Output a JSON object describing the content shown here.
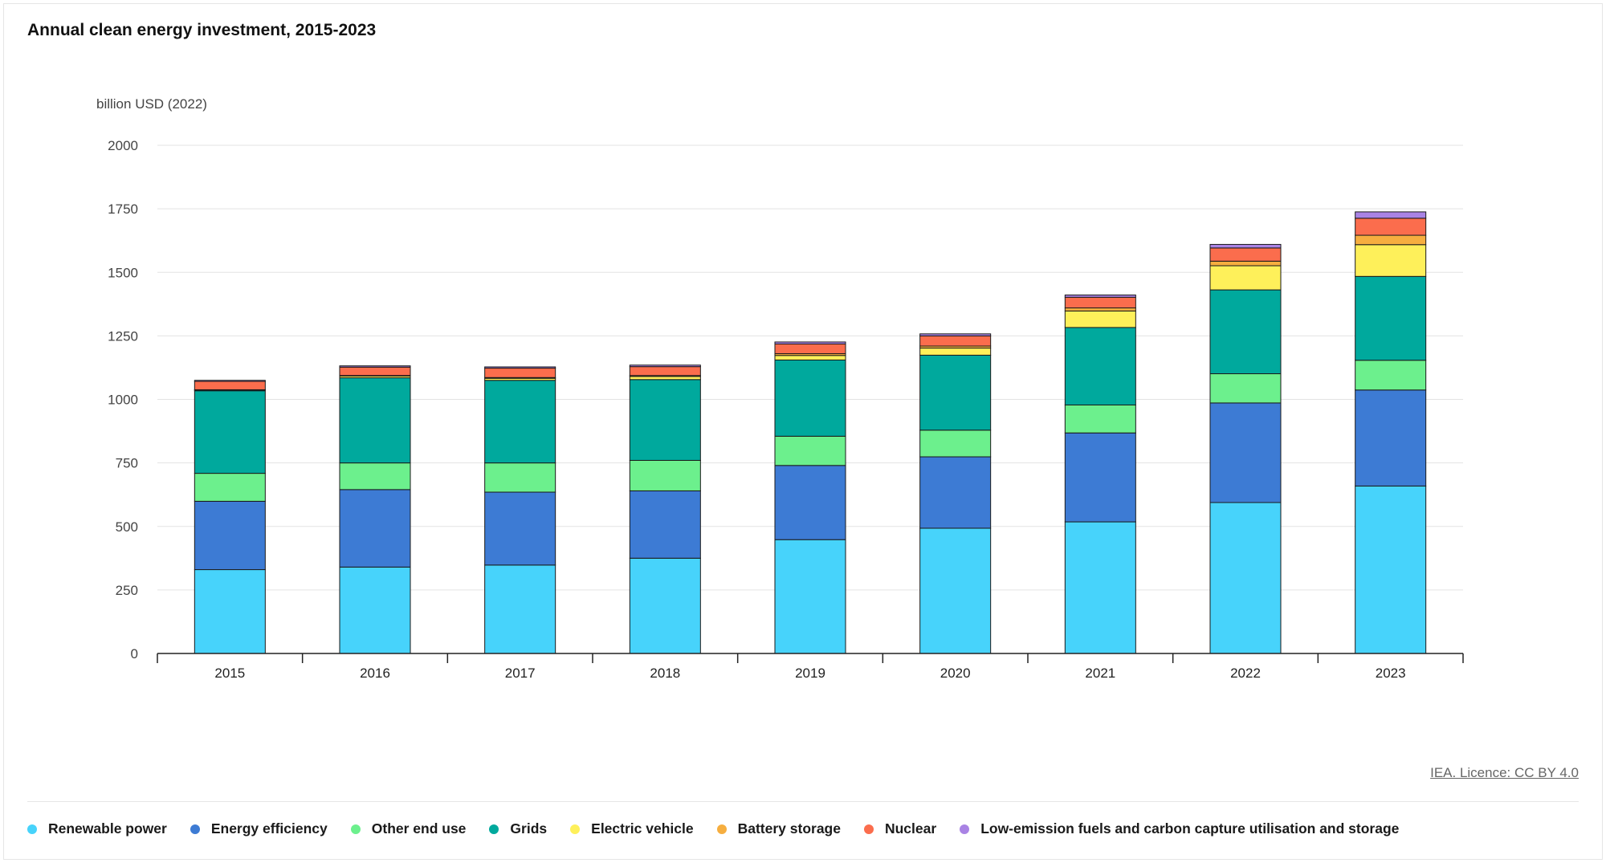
{
  "chart_data": {
    "type": "bar",
    "stacked": true,
    "title": "Annual clean energy investment, 2015-2023",
    "ylabel": "billion USD (2022)",
    "ylim": [
      0,
      2000
    ],
    "yticks": [
      0,
      250,
      500,
      750,
      1000,
      1250,
      1500,
      1750,
      2000
    ],
    "grid": true,
    "legend_position": "bottom",
    "categories": [
      "2015",
      "2016",
      "2017",
      "2018",
      "2019",
      "2020",
      "2021",
      "2022",
      "2023"
    ],
    "series": [
      {
        "name": "Renewable power",
        "color": "#47d3fb",
        "values": [
          330,
          340,
          348,
          375,
          448,
          493,
          518,
          594,
          659
        ]
      },
      {
        "name": "Energy efficiency",
        "color": "#3d7bd4",
        "values": [
          269,
          305,
          287,
          265,
          292,
          281,
          350,
          392,
          378
        ]
      },
      {
        "name": "Other end use",
        "color": "#6cf08d",
        "values": [
          110,
          105,
          115,
          120,
          115,
          105,
          110,
          115,
          117
        ]
      },
      {
        "name": "Grids",
        "color": "#00a99d",
        "values": [
          325,
          335,
          325,
          318,
          300,
          295,
          305,
          330,
          330
        ]
      },
      {
        "name": "Electric vehicle",
        "color": "#fef05a",
        "values": [
          3,
          7,
          8,
          12,
          18,
          28,
          65,
          95,
          125
        ]
      },
      {
        "name": "Battery storage",
        "color": "#f6ae3f",
        "values": [
          1,
          2,
          3,
          4,
          7,
          8,
          12,
          18,
          37
        ]
      },
      {
        "name": "Nuclear",
        "color": "#fb6d4d",
        "values": [
          33,
          33,
          37,
          35,
          38,
          40,
          42,
          52,
          67
        ]
      },
      {
        "name": "Low-emission fuels and carbon capture utilisation and storage",
        "color": "#a983e4",
        "values": [
          4,
          5,
          5,
          6,
          8,
          8,
          9,
          14,
          25
        ]
      }
    ]
  },
  "source": "IEA. Licence: CC BY 4.0"
}
